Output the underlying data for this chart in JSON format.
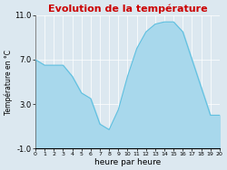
{
  "title": "Evolution de la température",
  "xlabel": "heure par heure",
  "ylabel": "Température en °C",
  "background_color": "#dce8f0",
  "plot_background": "#dce8f0",
  "title_color": "#cc0000",
  "line_color": "#60c0e0",
  "fill_color": "#a8d8ec",
  "hours": [
    0,
    1,
    2,
    3,
    4,
    5,
    6,
    7,
    8,
    9,
    10,
    11,
    12,
    13,
    14,
    15,
    16,
    17,
    18,
    19,
    20
  ],
  "temps": [
    7.0,
    6.5,
    6.5,
    6.5,
    5.5,
    4.0,
    3.5,
    1.2,
    0.7,
    2.5,
    5.5,
    8.0,
    9.5,
    10.2,
    10.4,
    10.4,
    9.5,
    7.0,
    4.5,
    2.0,
    2.0
  ],
  "ylim": [
    -1.0,
    11.0
  ],
  "xlim": [
    0,
    20
  ],
  "yticks": [
    -1.0,
    3.0,
    7.0,
    11.0
  ],
  "xticks": [
    0,
    1,
    2,
    3,
    4,
    5,
    6,
    7,
    8,
    9,
    10,
    11,
    12,
    13,
    14,
    15,
    16,
    17,
    18,
    19,
    20
  ],
  "xtick_labels": [
    "0",
    "1",
    "2",
    "3",
    "4",
    "5",
    "6",
    "7",
    "8",
    "9",
    "10",
    "11",
    "12",
    "13",
    "14",
    "15",
    "16",
    "17",
    "18",
    "19",
    "20"
  ],
  "grid_color": "#ffffff",
  "title_fontsize": 8,
  "xlabel_fontsize": 6.5,
  "ylabel_fontsize": 5.5,
  "ytick_fontsize": 6,
  "xtick_fontsize": 4.5
}
